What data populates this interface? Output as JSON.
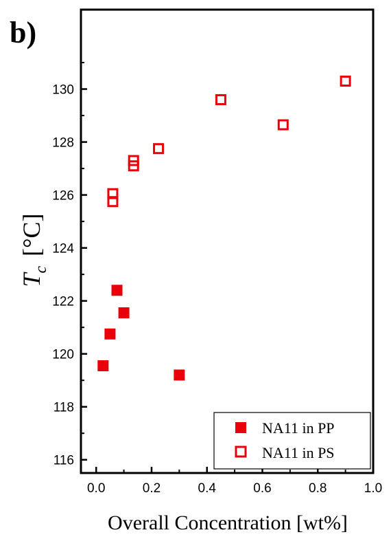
{
  "panel_label": "b)",
  "chart_data": {
    "type": "scatter",
    "xlabel": "Overall Concentration [wt%]",
    "ylabel_main": "T",
    "ylabel_sub": "c",
    "ylabel_unit": "[°C]",
    "xlim": [
      -0.055,
      1.0
    ],
    "ylim": [
      115.5,
      133.0
    ],
    "x_ticks": [
      0.0,
      0.2,
      0.4,
      0.6,
      0.8,
      1.0
    ],
    "x_tick_labels": [
      "0.0",
      "0.2",
      "0.4",
      "0.6",
      "0.8",
      "1.0"
    ],
    "y_ticks": [
      116,
      118,
      120,
      122,
      124,
      126,
      128,
      130
    ],
    "y_tick_labels": [
      "116",
      "118",
      "120",
      "122",
      "124",
      "126",
      "128",
      "130"
    ],
    "grid": false,
    "legend_position": "bottom-right",
    "series": [
      {
        "name": "NA11 in PP",
        "marker": "filled-square",
        "color": "#e8000b",
        "points": [
          [
            0.025,
            119.55
          ],
          [
            0.05,
            120.75
          ],
          [
            0.075,
            122.4
          ],
          [
            0.1,
            121.55
          ],
          [
            0.3,
            119.2
          ]
        ]
      },
      {
        "name": "NA11 in PS",
        "marker": "open-square",
        "color": "#e8000b",
        "points": [
          [
            0.06,
            126.05
          ],
          [
            0.06,
            125.75
          ],
          [
            0.135,
            127.3
          ],
          [
            0.135,
            127.1
          ],
          [
            0.225,
            127.75
          ],
          [
            0.45,
            129.6
          ],
          [
            0.675,
            128.65
          ],
          [
            0.9,
            130.3
          ]
        ]
      }
    ]
  }
}
